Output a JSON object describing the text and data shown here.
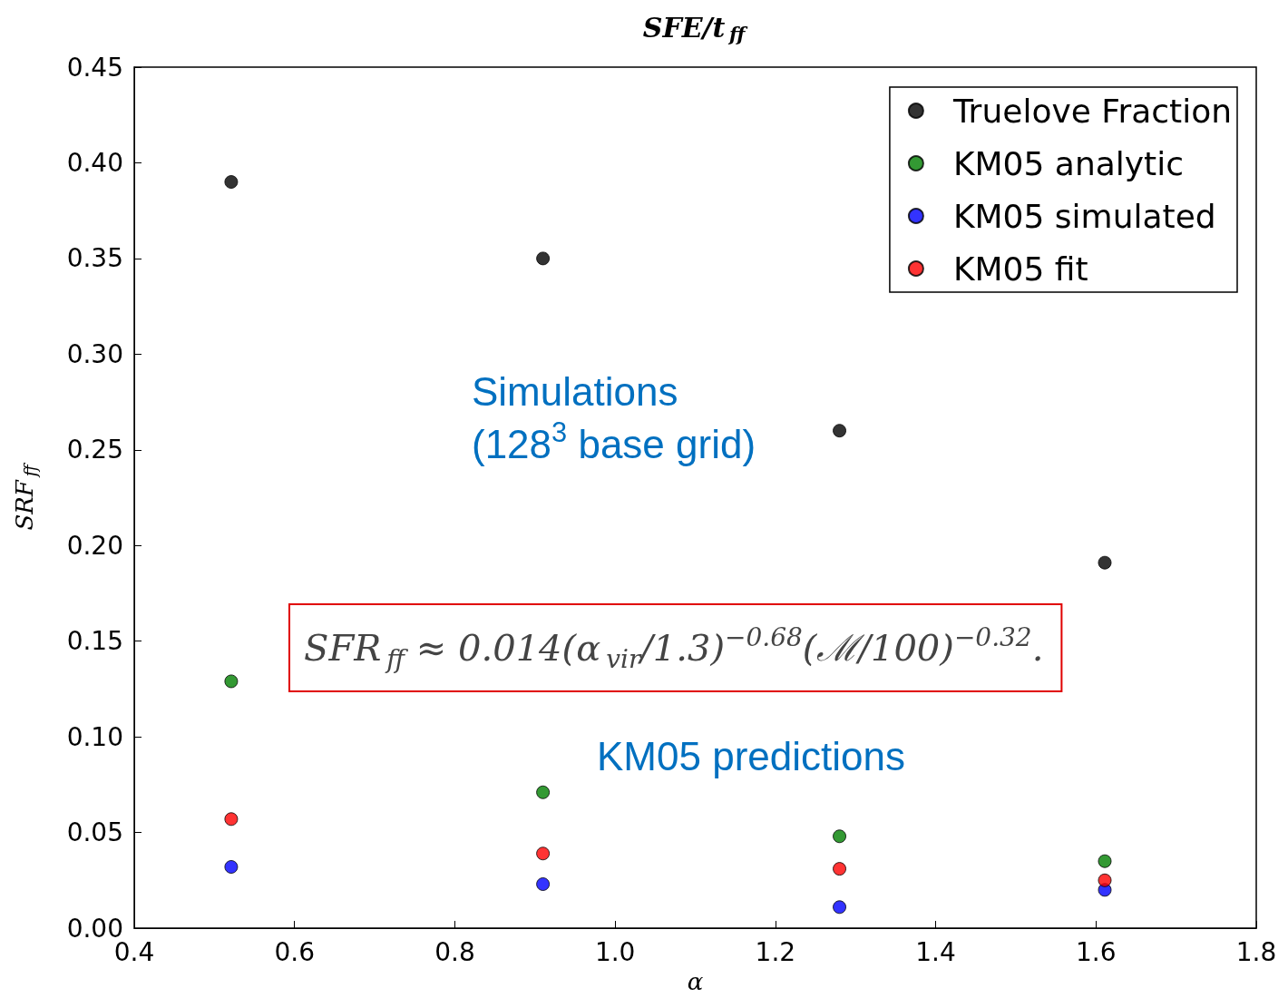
{
  "chart_data": {
    "type": "scatter",
    "title": "SFE/t$_{ff}$",
    "xlabel": "α",
    "ylabel": "SRF$_{ff}$",
    "x": [
      0.521,
      0.91,
      1.28,
      1.611
    ],
    "series": [
      {
        "name": "Truelove Fraction",
        "color": "#000000",
        "values": [
          0.39,
          0.35,
          0.26,
          0.191
        ]
      },
      {
        "name": "KM05 analytic",
        "color": "#008000",
        "values": [
          0.129,
          0.071,
          0.048,
          0.035
        ]
      },
      {
        "name": "KM05 simulated",
        "color": "#0000ff",
        "values": [
          0.032,
          0.023,
          0.011,
          0.02
        ]
      },
      {
        "name": "KM05 fit",
        "color": "#ff0000",
        "values": [
          0.057,
          0.039,
          0.031,
          0.025
        ]
      }
    ],
    "xlim": [
      0.4,
      1.8
    ],
    "xticks": [
      0.4,
      0.6,
      0.8,
      {
        "value": 1,
        "label": "1.0"
      },
      1.2,
      1.4,
      1.6,
      1.8
    ],
    "ylim": [
      0,
      0.45
    ],
    "yticks": [
      {
        "value": 0,
        "label": "0.00"
      },
      0.05,
      {
        "value": 0.1,
        "label": "0.10"
      },
      0.15,
      {
        "value": 0.2,
        "label": "0.20"
      },
      0.25,
      {
        "value": 0.3,
        "label": "0.30"
      },
      0.35,
      {
        "value": 0.4,
        "label": "0.40"
      },
      0.45
    ],
    "annotations": [
      "Simulations\n(128$^{3}$ base grid)",
      "SFR$_{ff}$ ≈ 0.014(α$_{vir}$/1.3)$^{−0.68}$(ℳ/100)$^{−0.32}$.",
      "KM05 predictions"
    ],
    "grid": false,
    "legend": "top right",
    "marker": "circle"
  }
}
